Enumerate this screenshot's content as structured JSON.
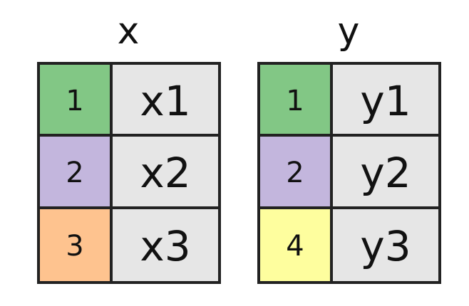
{
  "tables": [
    {
      "title": "x",
      "rows": [
        {
          "key": "1",
          "value": "x1",
          "key_color": "#82c785"
        },
        {
          "key": "2",
          "value": "x2",
          "key_color": "#c3b6dd"
        },
        {
          "key": "3",
          "value": "x3",
          "key_color": "#fec38f"
        }
      ]
    },
    {
      "title": "y",
      "rows": [
        {
          "key": "1",
          "value": "y1",
          "key_color": "#82c785"
        },
        {
          "key": "2",
          "value": "y2",
          "key_color": "#c3b6dd"
        },
        {
          "key": "4",
          "value": "y3",
          "key_color": "#fefe9e"
        }
      ]
    }
  ],
  "colors": {
    "key_1": "#82c785",
    "key_2": "#c3b6dd",
    "key_3": "#fec38f",
    "key_4": "#fefe9e",
    "value_cell": "#e6e6e6",
    "border": "#222222"
  }
}
